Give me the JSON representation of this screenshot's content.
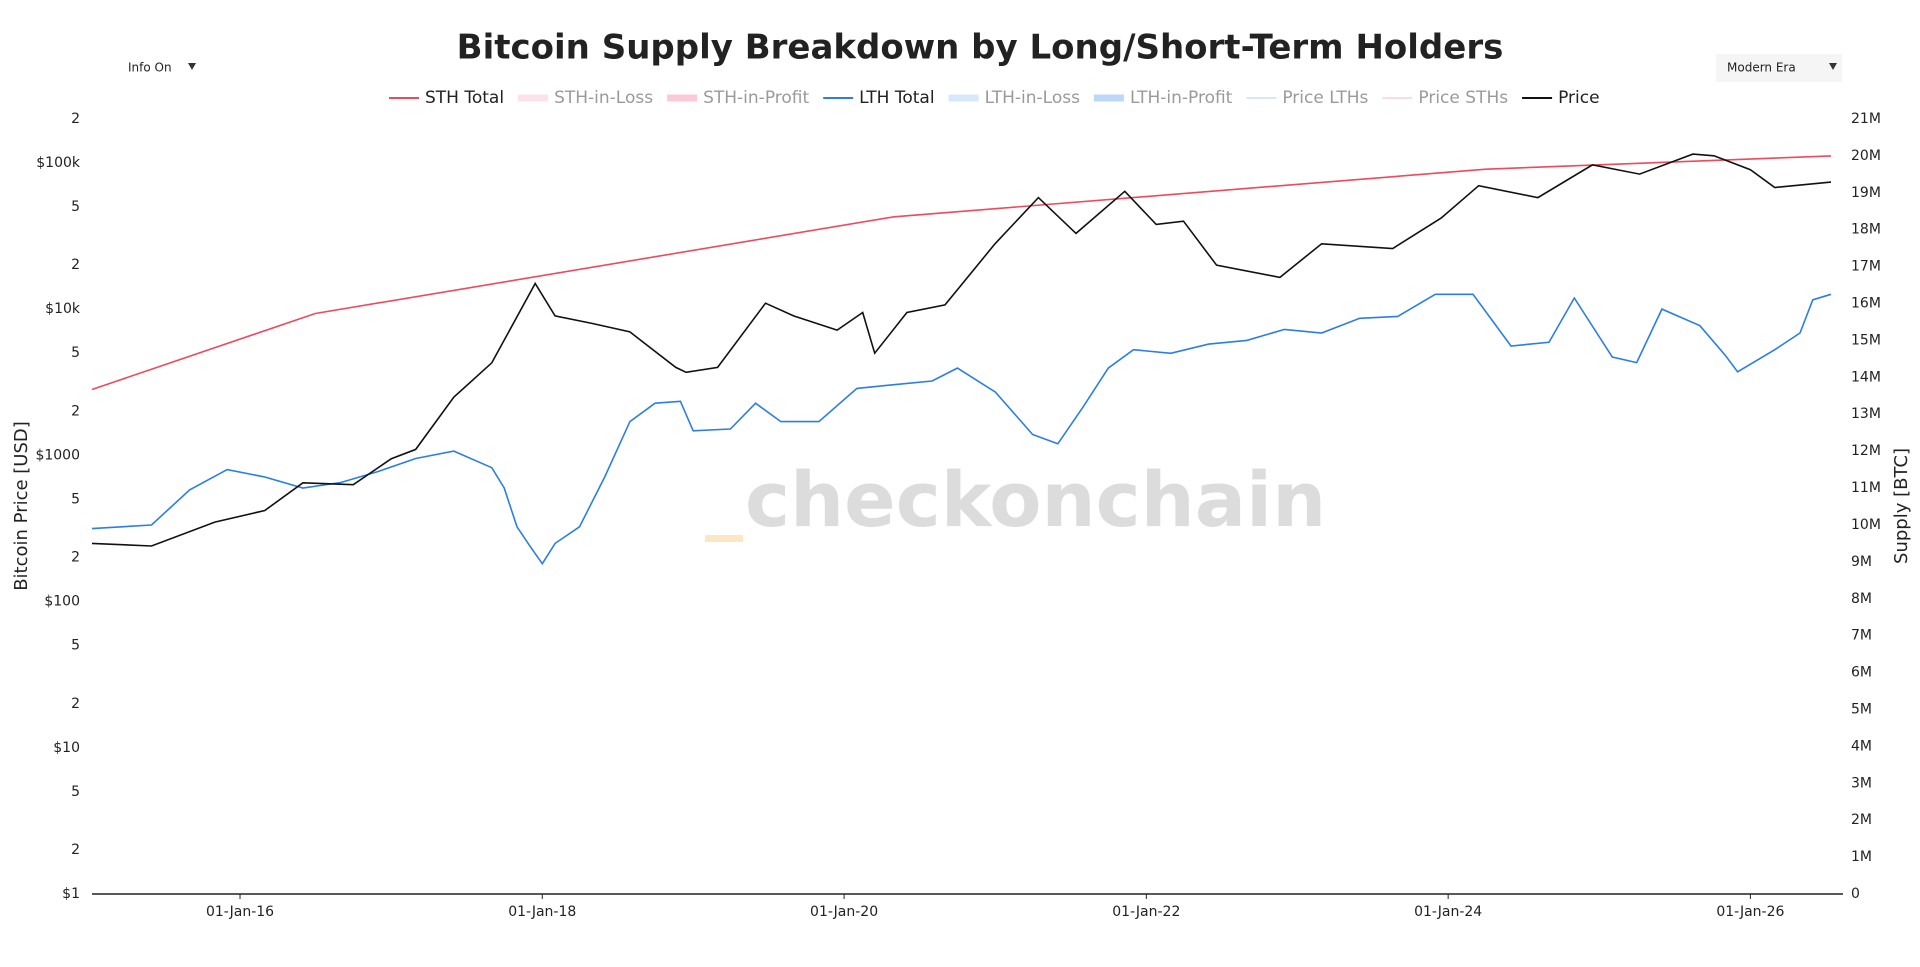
{
  "chart_data": {
    "type": "line",
    "title": "Bitcoin Supply Breakdown by Long/Short-Term Holders",
    "ylabel": "Bitcoin Price [USD]",
    "y2label": "Supply [BTC]",
    "watermark": "checkonchain",
    "controls": {
      "info": "Info On",
      "era": "Modern Era"
    },
    "log_y": true,
    "xlim": [
      "2015-01-08",
      "2026-08-13"
    ],
    "xticks": [
      {
        "value": "2016-01-01",
        "label": "01-Jan-16"
      },
      {
        "value": "2018-01-01",
        "label": "01-Jan-18"
      },
      {
        "value": "2020-01-01",
        "label": "01-Jan-20"
      },
      {
        "value": "2022-01-01",
        "label": "01-Jan-22"
      },
      {
        "value": "2024-01-01",
        "label": "01-Jan-24"
      },
      {
        "value": "2026-01-01",
        "label": "01-Jan-26"
      }
    ],
    "ylim": [
      1,
      200000
    ],
    "yticks": [
      {
        "value": 1,
        "label": "$1"
      },
      2,
      5,
      {
        "value": 10,
        "label": "$10"
      },
      {
        "value": 20,
        "label": "2"
      },
      {
        "value": 50,
        "label": "5"
      },
      {
        "value": 100,
        "label": "$100"
      },
      {
        "value": 200,
        "label": "2"
      },
      {
        "value": 500,
        "label": "5"
      },
      {
        "value": 1000,
        "label": "$1000"
      },
      {
        "value": 2000,
        "label": "2"
      },
      {
        "value": 5000,
        "label": "5"
      },
      {
        "value": 10000,
        "label": "$10k"
      },
      {
        "value": 20000,
        "label": "2"
      },
      {
        "value": 50000,
        "label": "5"
      },
      {
        "value": 100000,
        "label": "$100k"
      },
      {
        "value": 200000,
        "label": "2"
      }
    ],
    "y2lim": [
      0,
      21000000
    ],
    "y2ticks": [
      0,
      {
        "value": 1000000,
        "label": "1M"
      },
      {
        "value": 2000000,
        "label": "2M"
      },
      {
        "value": 3000000,
        "label": "3M"
      },
      {
        "value": 4000000,
        "label": "4M"
      },
      {
        "value": 5000000,
        "label": "5M"
      },
      {
        "value": 6000000,
        "label": "6M"
      },
      {
        "value": 7000000,
        "label": "7M"
      },
      {
        "value": 8000000,
        "label": "8M"
      },
      {
        "value": 9000000,
        "label": "9M"
      },
      {
        "value": 10000000,
        "label": "10M"
      },
      {
        "value": 11000000,
        "label": "11M"
      },
      {
        "value": 12000000,
        "label": "12M"
      },
      {
        "value": 13000000,
        "label": "13M"
      },
      {
        "value": 14000000,
        "label": "14M"
      },
      {
        "value": 15000000,
        "label": "15M"
      },
      {
        "value": 16000000,
        "label": "16M"
      },
      {
        "value": 17000000,
        "label": "17M"
      },
      {
        "value": 18000000,
        "label": "18M"
      },
      {
        "value": 19000000,
        "label": "19M"
      },
      {
        "value": 20000000,
        "label": "20M"
      },
      {
        "value": 21000000,
        "label": "21M"
      }
    ],
    "series": [
      {
        "name": "STH Total",
        "color": "#f0485c",
        "visible": true,
        "axis": "y2",
        "x": [
          "2015-01-08",
          "2016-07-01",
          "2020-05-01",
          "2024-04-01",
          "2026-07-15"
        ],
        "values": [
          13670000,
          15730000,
          18350000,
          19640000,
          20000000
        ]
      },
      {
        "name": "STH-in-Loss",
        "color": "#fde1e8",
        "visible": false,
        "fill": true
      },
      {
        "name": "STH-in-Profit",
        "color": "#fbcad6",
        "visible": false,
        "fill": true
      },
      {
        "name": "LTH Total",
        "color": "#2a7ee6",
        "visible": true,
        "axis": "y2",
        "x": [
          "2015-01-08",
          "2015-06-01",
          "2015-09-01",
          "2015-12-01",
          "2016-03-01",
          "2016-06-01",
          "2016-09-01",
          "2016-12-01",
          "2017-03-01",
          "2017-06-01",
          "2017-09-01",
          "2017-10-01",
          "2017-11-01",
          "2017-12-01",
          "2018-01-01",
          "2018-02-01",
          "2018-04-01",
          "2018-06-01",
          "2018-08-01",
          "2018-10-01",
          "2018-12-01",
          "2019-01-01",
          "2019-04-01",
          "2019-06-01",
          "2019-08-01",
          "2019-11-01",
          "2020-02-01",
          "2020-05-01",
          "2020-08-01",
          "2020-10-01",
          "2021-01-01",
          "2021-04-01",
          "2021-06-01",
          "2021-08-01",
          "2021-10-01",
          "2021-12-01",
          "2022-03-01",
          "2022-06-01",
          "2022-09-01",
          "2022-12-01",
          "2023-03-01",
          "2023-06-01",
          "2023-09-01",
          "2023-12-01",
          "2024-03-01",
          "2024-06-01",
          "2024-09-01",
          "2024-11-01",
          "2025-02-01",
          "2025-04-01",
          "2025-06-01",
          "2025-09-01",
          "2025-11-01",
          "2025-12-01",
          "2026-03-01",
          "2026-05-01",
          "2026-06-01",
          "2026-07-15"
        ],
        "values": [
          9900000,
          10000000,
          10950000,
          11500000,
          11300000,
          11000000,
          11150000,
          11450000,
          11800000,
          12000000,
          11550000,
          11000000,
          9950000,
          9450000,
          8950000,
          9500000,
          9950000,
          11300000,
          12800000,
          13300000,
          13350000,
          12550000,
          12600000,
          13300000,
          12800000,
          12800000,
          13700000,
          13800000,
          13900000,
          14250000,
          13600000,
          12450000,
          12200000,
          13200000,
          14250000,
          14750000,
          14650000,
          14900000,
          15000000,
          15300000,
          15200000,
          15600000,
          15650000,
          16250000,
          16250000,
          14850000,
          14950000,
          16150000,
          14550000,
          14400000,
          15850000,
          15400000,
          14600000,
          14150000,
          14750000,
          15200000,
          16100000,
          16250000
        ]
      },
      {
        "name": "LTH-in-Loss",
        "color": "#d8e8fc",
        "visible": false,
        "fill": true
      },
      {
        "name": "LTH-in-Profit",
        "color": "#bdd7f8",
        "visible": false,
        "fill": true
      },
      {
        "name": "Price LTHs",
        "color": "#c4d8f5",
        "visible": false
      },
      {
        "name": "Price STHs",
        "color": "#f8c8d3",
        "visible": false
      },
      {
        "name": "Price",
        "color": "#111111",
        "visible": true,
        "axis": "y",
        "x": [
          "2015-01-08",
          "2015-06-01",
          "2015-11-01",
          "2016-03-01",
          "2016-06-01",
          "2016-10-01",
          "2017-01-01",
          "2017-03-01",
          "2017-06-01",
          "2017-09-01",
          "2017-12-15",
          "2018-02-01",
          "2018-05-01",
          "2018-08-01",
          "2018-11-20",
          "2018-12-15",
          "2019-03-01",
          "2019-06-25",
          "2019-09-01",
          "2019-12-15",
          "2020-02-15",
          "2020-03-15",
          "2020-06-01",
          "2020-09-01",
          "2020-12-31",
          "2021-04-15",
          "2021-07-15",
          "2021-11-10",
          "2022-01-25",
          "2022-04-01",
          "2022-06-20",
          "2022-11-20",
          "2023-03-01",
          "2023-08-20",
          "2023-12-15",
          "2024-03-15",
          "2024-08-05",
          "2024-12-15",
          "2025-04-08",
          "2025-08-15",
          "2025-10-05",
          "2026-01-01",
          "2026-03-01",
          "2026-07-15"
        ],
        "values": [
          250,
          240,
          350,
          420,
          650,
          630,
          950,
          1100,
          2500,
          4300,
          15000,
          9000,
          8000,
          7000,
          4000,
          3700,
          4000,
          11000,
          9000,
          7200,
          9500,
          5000,
          9500,
          10700,
          28000,
          58000,
          33000,
          64000,
          38000,
          40000,
          20000,
          16500,
          28000,
          26000,
          42000,
          70000,
          58000,
          97000,
          84000,
          115000,
          112000,
          90000,
          68000,
          74000
        ]
      }
    ]
  }
}
